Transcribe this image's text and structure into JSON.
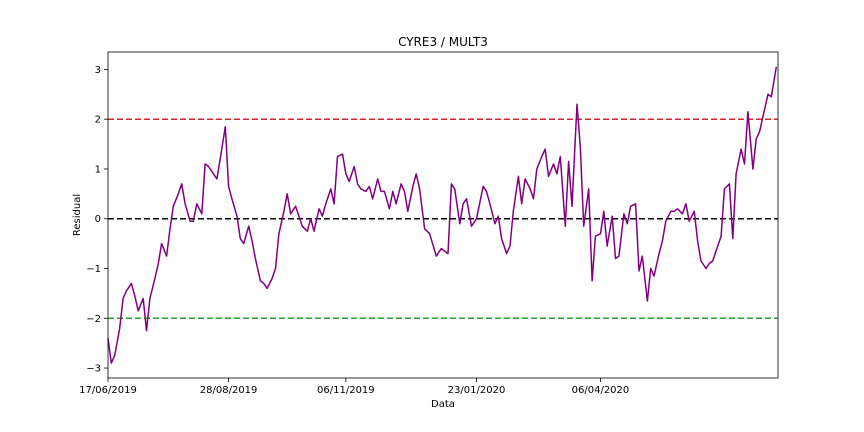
{
  "chart_data": {
    "type": "line",
    "title": "CYRE3 / MULT3",
    "xlabel": "Data",
    "ylabel": "Residual",
    "ylim": [
      -3.2,
      3.35
    ],
    "xlim": [
      "2019-06-17",
      "2020-07-21"
    ],
    "y_ticks": [
      3,
      2,
      1,
      0,
      -1,
      -2,
      -3
    ],
    "y_tick_labels": [
      "3",
      "2",
      "1",
      "0",
      "−1",
      "−2",
      "−3"
    ],
    "x_ticks": [
      "2019-06-17",
      "2019-08-28",
      "2019-11-06",
      "2020-01-23",
      "2020-04-06"
    ],
    "x_tick_labels": [
      "17/06/2019",
      "28/08/2019",
      "06/11/2019",
      "23/01/2020",
      "06/04/2020"
    ],
    "grid": false,
    "reference_lines": [
      {
        "y": 2,
        "color": "#d62728",
        "style": "dashed"
      },
      {
        "y": 0,
        "color": "#000000",
        "style": "dashed"
      },
      {
        "y": -2,
        "color": "#2ca02c",
        "style": "dashed"
      }
    ],
    "series": [
      {
        "color": "#800080",
        "x": [
          "2019-06-17",
          "2019-06-19",
          "2019-06-21",
          "2019-06-24",
          "2019-06-26",
          "2019-06-28",
          "2019-07-01",
          "2019-07-03",
          "2019-07-05",
          "2019-07-08",
          "2019-07-10",
          "2019-07-12",
          "2019-07-15",
          "2019-07-17",
          "2019-07-19",
          "2019-07-22",
          "2019-07-24",
          "2019-07-26",
          "2019-07-29",
          "2019-07-31",
          "2019-08-02",
          "2019-08-05",
          "2019-08-07",
          "2019-08-09",
          "2019-08-12",
          "2019-08-14",
          "2019-08-16",
          "2019-08-19",
          "2019-08-21",
          "2019-08-23",
          "2019-08-26",
          "2019-08-28",
          "2019-08-30",
          "2019-09-02",
          "2019-09-04",
          "2019-09-06",
          "2019-09-09",
          "2019-09-11",
          "2019-09-13",
          "2019-09-16",
          "2019-09-18",
          "2019-09-20",
          "2019-09-23",
          "2019-09-25",
          "2019-09-27",
          "2019-09-30",
          "2019-10-02",
          "2019-10-04",
          "2019-10-07",
          "2019-10-09",
          "2019-10-11",
          "2019-10-14",
          "2019-10-16",
          "2019-10-18",
          "2019-10-21",
          "2019-10-23",
          "2019-10-25",
          "2019-10-28",
          "2019-10-30",
          "2019-11-01",
          "2019-11-04",
          "2019-11-06",
          "2019-11-08",
          "2019-11-11",
          "2019-11-13",
          "2019-11-15",
          "2019-11-18",
          "2019-11-20",
          "2019-11-22",
          "2019-11-25",
          "2019-11-27",
          "2019-11-29",
          "2019-12-02",
          "2019-12-04",
          "2019-12-06",
          "2019-12-09",
          "2019-12-11",
          "2019-12-13",
          "2019-12-16",
          "2019-12-18",
          "2019-12-20",
          "2019-12-23",
          "2019-12-26",
          "2019-12-30",
          "2020-01-02",
          "2020-01-06",
          "2020-01-08",
          "2020-01-10",
          "2020-01-13",
          "2020-01-15",
          "2020-01-17",
          "2020-01-20",
          "2020-01-23",
          "2020-01-27",
          "2020-01-29",
          "2020-01-31",
          "2020-02-03",
          "2020-02-05",
          "2020-02-07",
          "2020-02-10",
          "2020-02-12",
          "2020-02-14",
          "2020-02-17",
          "2020-02-19",
          "2020-02-21",
          "2020-02-24",
          "2020-02-26",
          "2020-02-28",
          "2020-03-02",
          "2020-03-04",
          "2020-03-06",
          "2020-03-09",
          "2020-03-11",
          "2020-03-13",
          "2020-03-16",
          "2020-03-18",
          "2020-03-20",
          "2020-03-23",
          "2020-03-25",
          "2020-03-27",
          "2020-03-30",
          "2020-04-01",
          "2020-04-03",
          "2020-04-06",
          "2020-04-08",
          "2020-04-10",
          "2020-04-13",
          "2020-04-15",
          "2020-04-17",
          "2020-04-20",
          "2020-04-22",
          "2020-04-24",
          "2020-04-27",
          "2020-04-29",
          "2020-05-01",
          "2020-05-04",
          "2020-05-06",
          "2020-05-08",
          "2020-05-11",
          "2020-05-13",
          "2020-05-15",
          "2020-05-18",
          "2020-05-20",
          "2020-05-22",
          "2020-05-25",
          "2020-05-27",
          "2020-05-29",
          "2020-06-01",
          "2020-06-03",
          "2020-06-05",
          "2020-06-08",
          "2020-06-10",
          "2020-06-12",
          "2020-06-15",
          "2020-06-17",
          "2020-06-19",
          "2020-06-22",
          "2020-06-24",
          "2020-06-26",
          "2020-06-29",
          "2020-07-01",
          "2020-07-03",
          "2020-07-06",
          "2020-07-08",
          "2020-07-10",
          "2020-07-13",
          "2020-07-15",
          "2020-07-17",
          "2020-07-20"
        ],
        "y": [
          -2.4,
          -2.9,
          -2.75,
          -2.2,
          -1.6,
          -1.45,
          -1.3,
          -1.55,
          -1.85,
          -1.6,
          -2.25,
          -1.6,
          -1.2,
          -0.9,
          -0.5,
          -0.75,
          -0.2,
          0.25,
          0.5,
          0.7,
          0.3,
          -0.05,
          -0.05,
          0.3,
          0.1,
          1.1,
          1.05,
          0.9,
          0.8,
          1.2,
          1.85,
          0.65,
          0.4,
          0.05,
          -0.4,
          -0.5,
          -0.15,
          -0.45,
          -0.8,
          -1.25,
          -1.3,
          -1.4,
          -1.2,
          -1.0,
          -0.3,
          0.15,
          0.5,
          0.1,
          0.25,
          0.05,
          -0.15,
          -0.25,
          0.0,
          -0.25,
          0.2,
          0.05,
          0.3,
          0.6,
          0.3,
          1.25,
          1.3,
          0.9,
          0.75,
          1.05,
          0.7,
          0.6,
          0.55,
          0.65,
          0.4,
          0.8,
          0.55,
          0.55,
          0.2,
          0.55,
          0.3,
          0.7,
          0.55,
          0.15,
          0.65,
          0.9,
          0.6,
          -0.2,
          -0.3,
          -0.75,
          -0.6,
          -0.7,
          0.7,
          0.6,
          -0.1,
          0.3,
          0.4,
          -0.15,
          0.0,
          0.65,
          0.55,
          0.3,
          -0.1,
          0.05,
          -0.4,
          -0.7,
          -0.55,
          0.15,
          0.85,
          0.3,
          0.8,
          0.6,
          0.4,
          1.0,
          1.25,
          1.4,
          0.85,
          1.1,
          0.9,
          1.25,
          -0.15,
          1.15,
          0.25,
          2.3,
          1.45,
          -0.15,
          0.6,
          -1.25,
          -0.35,
          -0.3,
          0.15,
          -0.55,
          0.05,
          -0.8,
          -0.75,
          0.1,
          -0.1,
          0.25,
          0.3,
          -1.05,
          -0.75,
          -1.65,
          -1.0,
          -1.15,
          -0.7,
          -0.45,
          -0.05,
          0.15,
          0.15,
          0.2,
          0.1,
          0.3,
          -0.05,
          0.15,
          -0.45,
          -0.85,
          -1.0,
          -0.9,
          -0.85,
          -0.55,
          -0.35,
          0.6,
          0.7,
          -0.4,
          0.9,
          1.4,
          1.1,
          2.15,
          1.0,
          1.6,
          1.75,
          2.2,
          2.5,
          2.45,
          3.05
        ]
      }
    ]
  }
}
